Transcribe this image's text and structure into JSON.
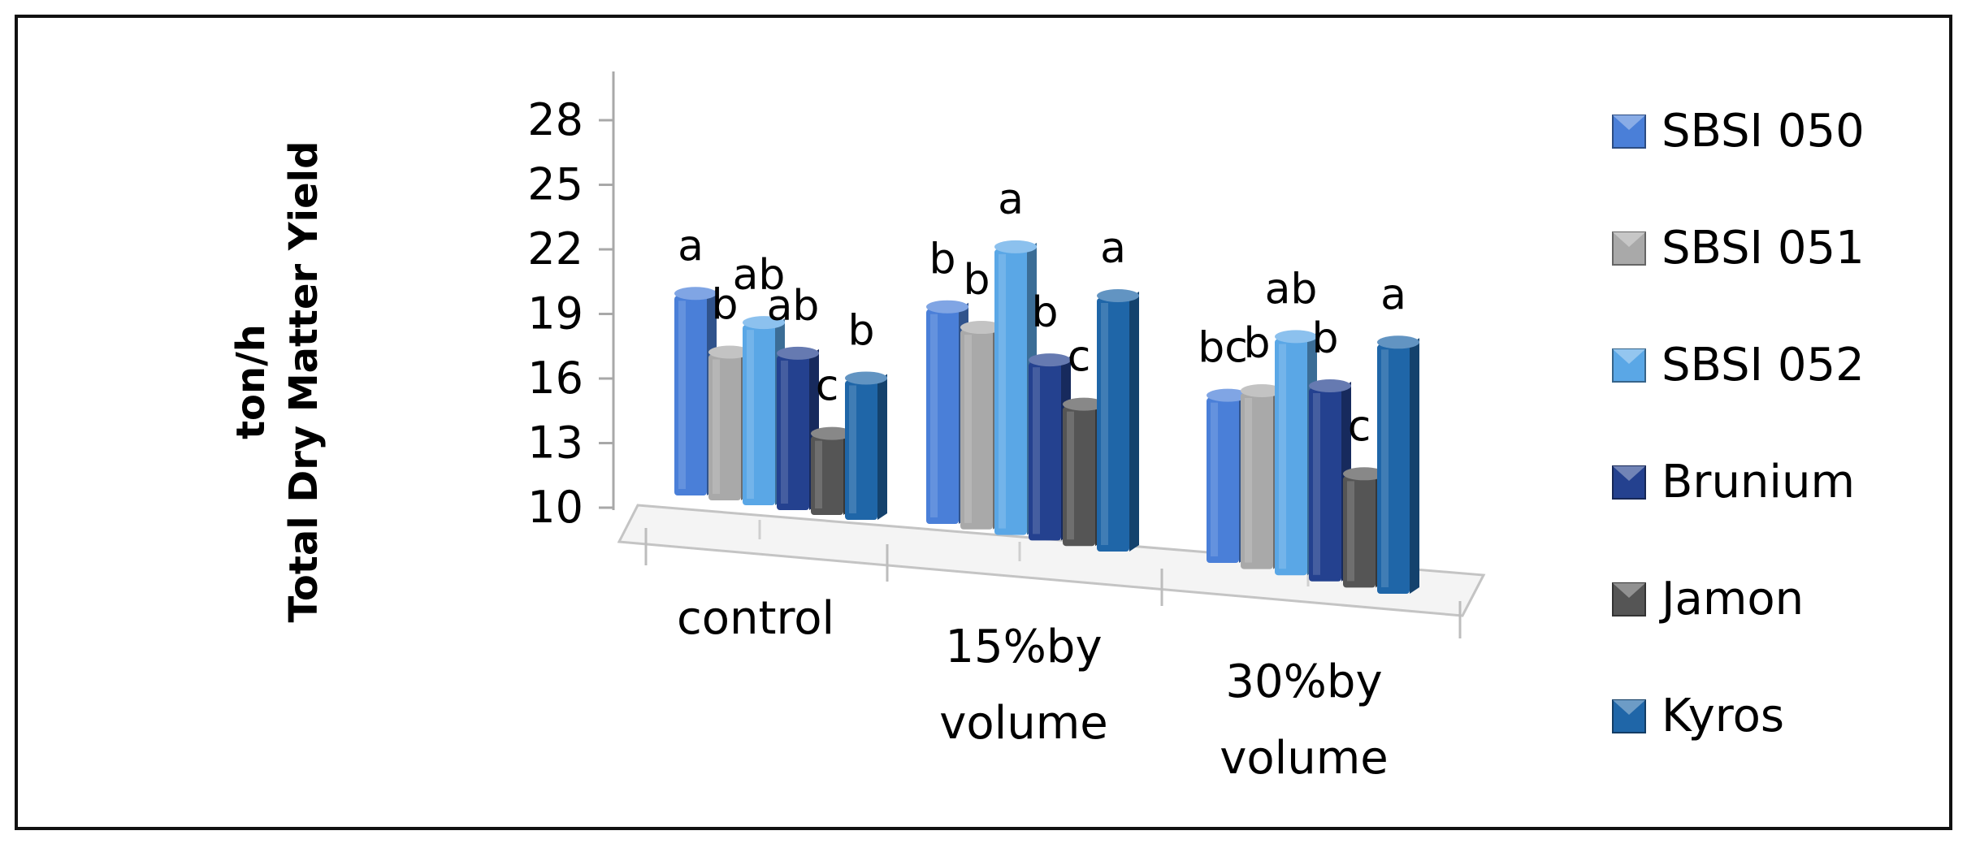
{
  "chart_data": {
    "type": "bar",
    "ylabel_lines": [
      "ton/h",
      "Total Dry Matter Yield"
    ],
    "categories": [
      [
        "control"
      ],
      [
        "15%by",
        "volume"
      ],
      [
        "30%by",
        "volume"
      ]
    ],
    "yticks": [
      10,
      13,
      16,
      19,
      22,
      25,
      28
    ],
    "ylim": [
      10,
      28
    ],
    "legend_position": "right",
    "series": [
      {
        "name": "SBSI 050",
        "color": "#4a7fd8",
        "values": [
          19.5,
          20.2,
          17.9
        ],
        "letters": [
          "a",
          "b",
          "bc"
        ]
      },
      {
        "name": "SBSI 051",
        "color": "#a9a9a9",
        "values": [
          17.0,
          19.5,
          18.4
        ],
        "letters": [
          "b",
          "b",
          "b"
        ]
      },
      {
        "name": "SBSI 052",
        "color": "#5aa7e6",
        "values": [
          18.6,
          23.5,
          21.2
        ],
        "letters": [
          "ab",
          "a",
          "ab"
        ]
      },
      {
        "name": "Brunium",
        "color": "#24418f",
        "values": [
          17.4,
          18.5,
          19.2
        ],
        "letters": [
          "ab",
          "b",
          "b"
        ]
      },
      {
        "name": "Jamon",
        "color": "#555555",
        "values": [
          13.9,
          16.7,
          15.4
        ],
        "letters": [
          "c",
          "c",
          "c"
        ]
      },
      {
        "name": "Kyros",
        "color": "#1f66a8",
        "values": [
          16.7,
          22.0,
          21.8
        ],
        "letters": [
          "b",
          "a",
          "a"
        ]
      }
    ]
  }
}
